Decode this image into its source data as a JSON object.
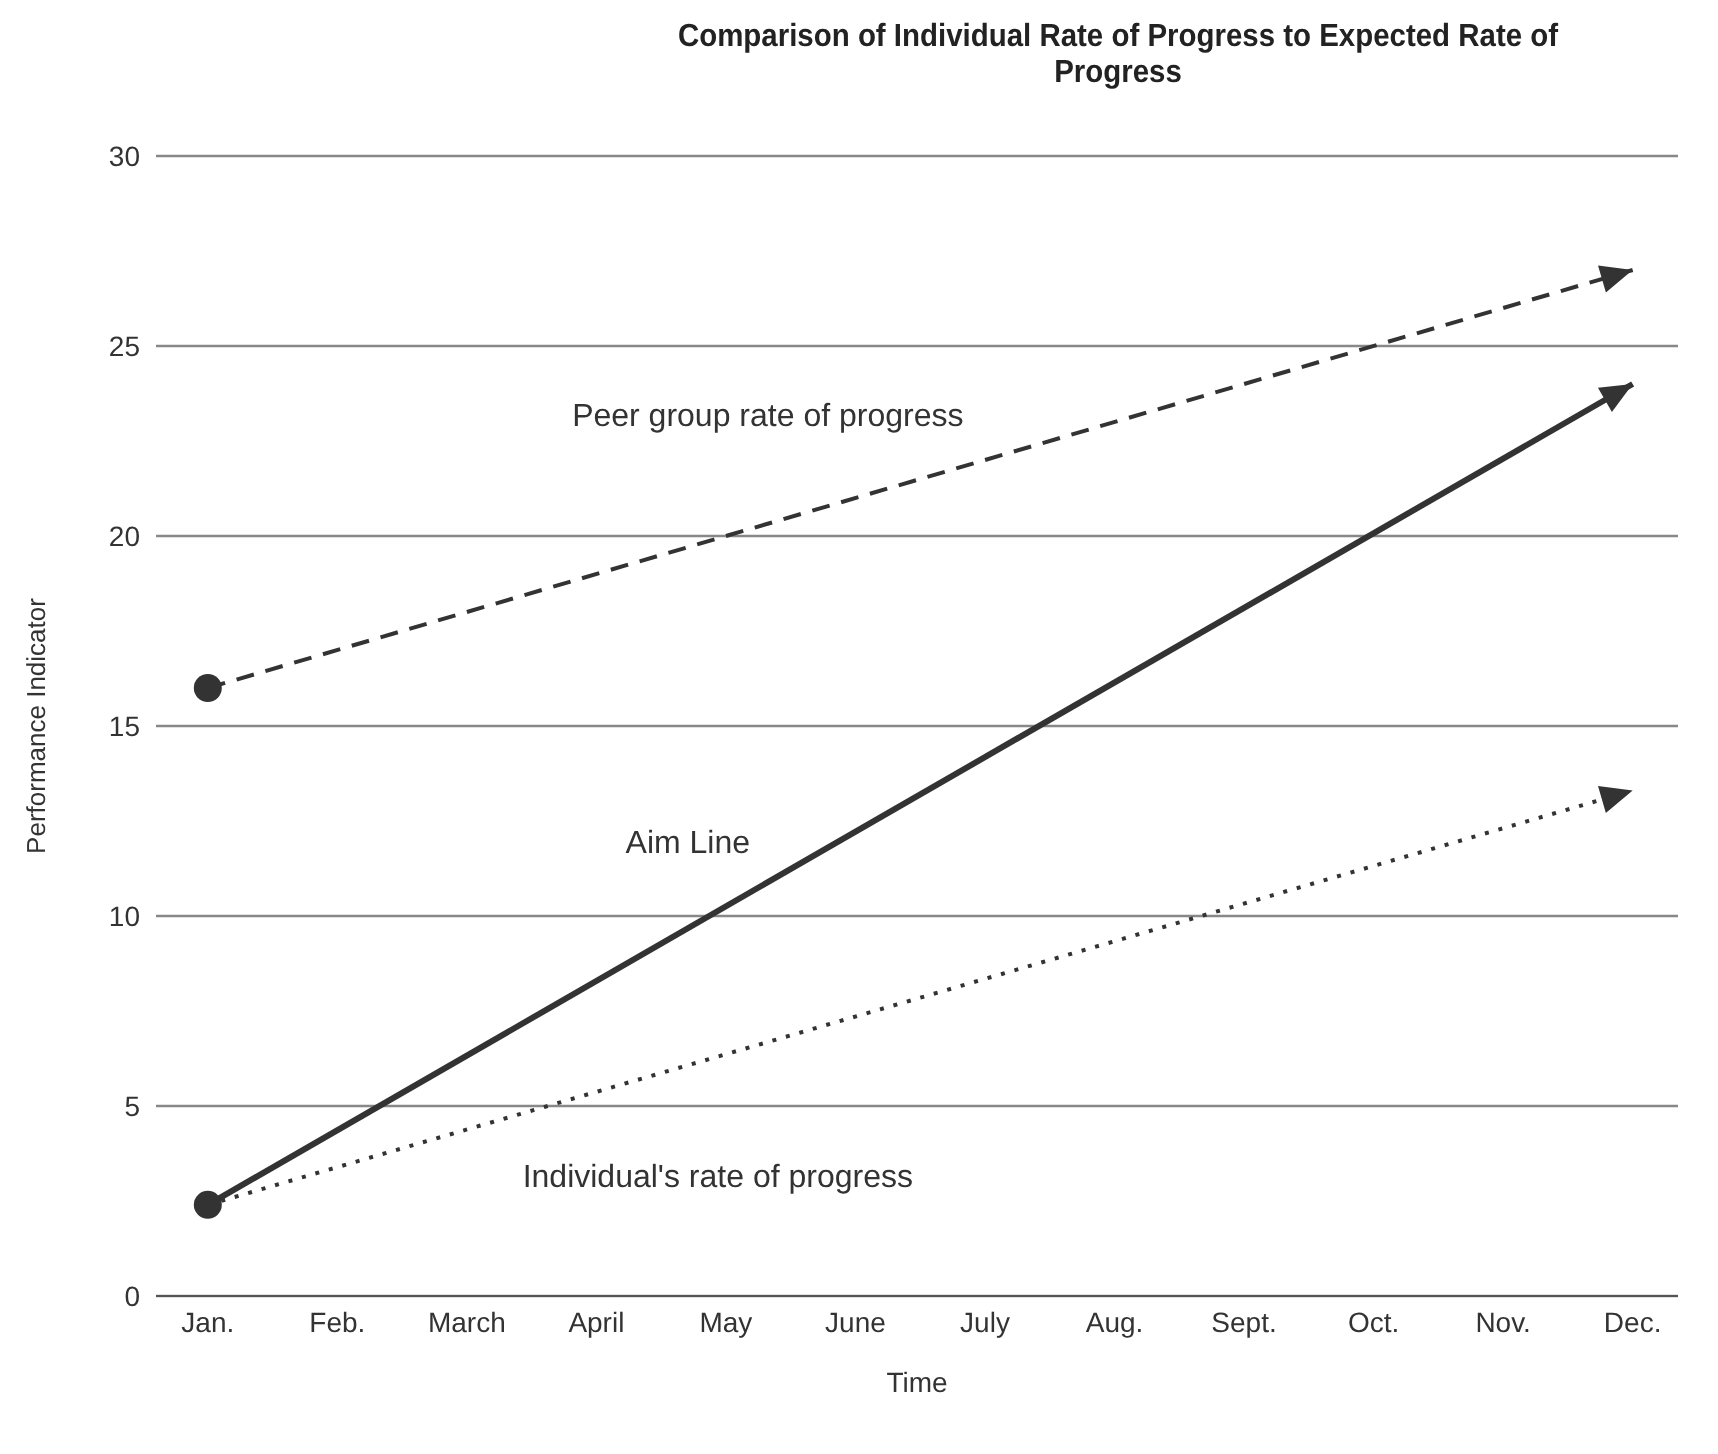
{
  "chart_data": {
    "type": "line",
    "title": "Comparison of Individual Rate of Progress to Expected Rate of Progress",
    "xlabel": "Time",
    "ylabel": "Performance Indicator",
    "categories": [
      "Jan.",
      "Feb.",
      "March",
      "April",
      "May",
      "June",
      "July",
      "Aug.",
      "Sept.",
      "Oct.",
      "Nov.",
      "Dec."
    ],
    "series": [
      {
        "name": "Peer group rate of progress",
        "color": "#333333",
        "line_style": "dashed",
        "marker": "circle",
        "values": [
          16,
          null,
          null,
          null,
          null,
          null,
          null,
          null,
          null,
          null,
          null,
          27
        ]
      },
      {
        "name": "Aim Line",
        "color": "#333333",
        "line_style": "solid",
        "marker": "circle",
        "values": [
          2.4,
          null,
          null,
          null,
          null,
          null,
          null,
          null,
          null,
          null,
          null,
          24
        ]
      },
      {
        "name": "Individual's rate of progress",
        "color": "#333333",
        "line_style": "dotted",
        "marker": "none",
        "values": [
          2.4,
          null,
          null,
          null,
          null,
          null,
          null,
          null,
          null,
          null,
          null,
          13.3
        ]
      }
    ],
    "ylim": [
      0,
      30
    ],
    "yticks": [
      0,
      5,
      10,
      15,
      20,
      25,
      30
    ],
    "grid": "y"
  }
}
